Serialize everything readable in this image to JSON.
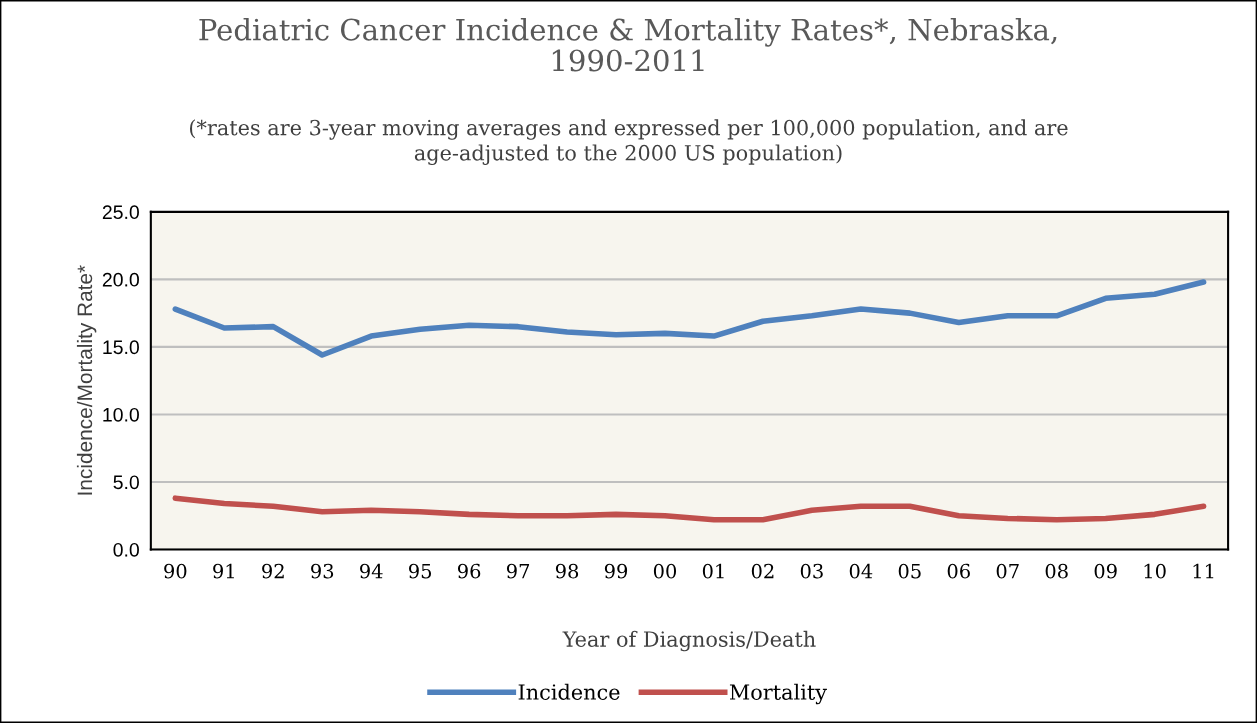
{
  "chart_data": {
    "type": "line",
    "title": "Pediatric Cancer Incidence & Mortality Rates*, Nebraska,\n1990-2011",
    "subtitle": "(*rates are 3-year moving averages and expressed per 100,000 population, and are\nage-adjusted to the 2000 US population)",
    "xlabel": "Year of Diagnosis/Death",
    "ylabel": "Incidence/Mortality Rate*",
    "categories": [
      "90",
      "91",
      "92",
      "93",
      "94",
      "95",
      "96",
      "97",
      "98",
      "99",
      "00",
      "01",
      "02",
      "03",
      "04",
      "05",
      "06",
      "07",
      "08",
      "09",
      "10",
      "11"
    ],
    "series": [
      {
        "name": "Incidence",
        "color": "#4f81bd",
        "values": [
          17.8,
          16.4,
          16.5,
          14.4,
          15.8,
          16.3,
          16.6,
          16.5,
          16.1,
          15.9,
          16.0,
          15.8,
          16.9,
          17.3,
          17.8,
          17.5,
          16.8,
          17.3,
          17.3,
          18.6,
          18.9,
          19.8
        ]
      },
      {
        "name": "Mortality",
        "color": "#c0504d",
        "values": [
          3.8,
          3.4,
          3.2,
          2.8,
          2.9,
          2.8,
          2.6,
          2.5,
          2.5,
          2.6,
          2.5,
          2.2,
          2.2,
          2.9,
          3.2,
          3.2,
          2.5,
          2.3,
          2.2,
          2.3,
          2.6,
          3.2
        ]
      }
    ],
    "ylim": [
      0,
      25
    ],
    "yticks": [
      {
        "value": 0,
        "label": "0.0"
      },
      {
        "value": 5,
        "label": "5.0"
      },
      {
        "value": 10,
        "label": "10.0"
      },
      {
        "value": 15,
        "label": "15.0"
      },
      {
        "value": 20,
        "label": "20.0"
      },
      {
        "value": 25,
        "label": "25.0"
      }
    ],
    "grid": "y",
    "legend": "bottom",
    "marker": "none",
    "line_style": "solid"
  }
}
